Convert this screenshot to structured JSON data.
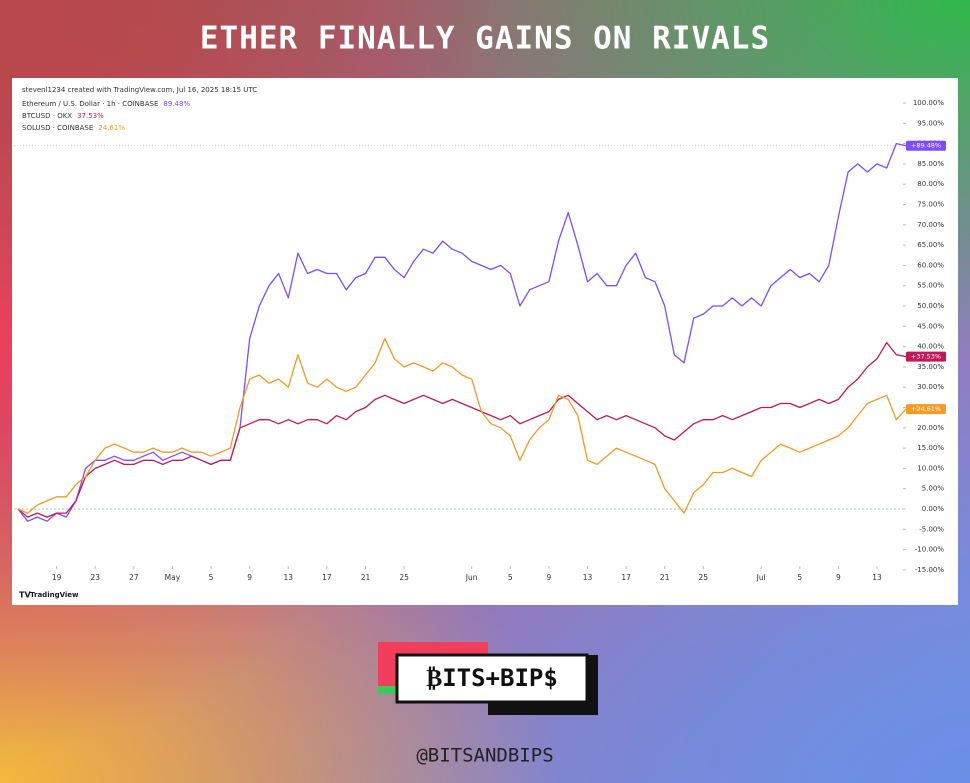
{
  "chart_data": {
    "type": "line",
    "title": "ETHER FINALLY GAINS ON RIVALS",
    "attribution": "stevenl1234 created with TradingView.com, Jul 16, 2025 18:15 UTC",
    "brand": "TradingView",
    "logo": "₿ITS+BIP$",
    "handle": "@BITSANDBIPS",
    "categories": [
      null,
      null,
      null,
      null,
      "19",
      null,
      null,
      null,
      "23",
      null,
      null,
      null,
      "27",
      null,
      null,
      null,
      "May",
      null,
      null,
      null,
      "5",
      null,
      null,
      null,
      "9",
      null,
      null,
      null,
      "13",
      null,
      null,
      null,
      "17",
      null,
      null,
      null,
      "21",
      null,
      null,
      null,
      "25",
      null,
      null,
      null,
      null,
      null,
      null,
      "Jun",
      null,
      null,
      null,
      "5",
      null,
      null,
      null,
      "9",
      null,
      null,
      null,
      "13",
      null,
      null,
      null,
      "17",
      null,
      null,
      null,
      "21",
      null,
      null,
      null,
      "25",
      null,
      null,
      null,
      null,
      null,
      "Jul",
      null,
      null,
      null,
      "5",
      null,
      null,
      null,
      "9",
      null,
      null,
      null,
      "13",
      null,
      null,
      null
    ],
    "series": [
      {
        "name": "Ethereum / U.S. Dollar · 1h · COINBASE",
        "legend_value": "89.48%",
        "last_label": "+89.48%",
        "color": "#7c4dff",
        "values": [
          0,
          -3,
          -2,
          -3,
          -1,
          -2,
          2,
          10,
          12,
          12,
          13,
          12,
          12,
          13,
          14,
          12,
          13,
          14,
          13,
          12,
          11,
          12,
          12,
          20,
          42,
          50,
          55,
          58,
          52,
          63,
          58,
          59,
          58,
          58,
          54,
          57,
          58,
          62,
          62,
          59,
          57,
          61,
          64,
          63,
          66,
          64,
          63,
          61,
          60,
          59,
          60,
          58,
          50,
          54,
          55,
          56,
          66,
          73,
          65,
          56,
          58,
          55,
          55,
          60,
          63,
          57,
          56,
          50,
          38,
          36,
          47,
          48,
          50,
          50,
          52,
          50,
          52,
          50,
          55,
          57,
          59,
          57,
          58,
          56,
          60,
          72,
          83,
          85,
          83,
          85,
          84,
          90,
          89.48
        ]
      },
      {
        "name": "BTCUSD · OKX",
        "legend_value": "37.53%",
        "last_label": "+37.53%",
        "color": "#c2185b",
        "values": [
          0,
          -2,
          -1,
          -2,
          -1,
          -1,
          2,
          8,
          10,
          11,
          12,
          11,
          11,
          12,
          12,
          11,
          12,
          12,
          13,
          12,
          11,
          12,
          12,
          20,
          21,
          22,
          22,
          21,
          22,
          21,
          22,
          22,
          21,
          23,
          22,
          24,
          25,
          27,
          28,
          27,
          26,
          27,
          28,
          27,
          26,
          27,
          26,
          25,
          24,
          23,
          22,
          23,
          21,
          22,
          23,
          24,
          27,
          28,
          26,
          24,
          22,
          23,
          22,
          23,
          22,
          21,
          20,
          18,
          17,
          19,
          21,
          22,
          22,
          23,
          22,
          23,
          24,
          25,
          25,
          26,
          26,
          25,
          26,
          27,
          26,
          27,
          30,
          32,
          35,
          37,
          41,
          38,
          37.53
        ]
      },
      {
        "name": "SOLUSD · COINBASE",
        "legend_value": "24.61%",
        "last_label": "+24.61%",
        "color": "#f39b22",
        "values": [
          0,
          -1,
          1,
          2,
          3,
          3,
          6,
          8,
          12,
          15,
          16,
          15,
          14,
          14,
          15,
          14,
          14,
          15,
          14,
          14,
          13,
          14,
          15,
          25,
          32,
          33,
          31,
          32,
          30,
          38,
          31,
          30,
          32,
          30,
          29,
          30,
          33,
          36,
          42,
          37,
          35,
          36,
          35,
          34,
          36,
          35,
          33,
          32,
          24,
          21,
          20,
          18,
          12,
          17,
          20,
          22,
          28,
          27,
          23,
          12,
          11,
          13,
          15,
          14,
          13,
          12,
          11,
          5,
          2,
          -1,
          4,
          6,
          9,
          9,
          10,
          9,
          8,
          12,
          14,
          16,
          15,
          14,
          15,
          16,
          17,
          18,
          20,
          23,
          26,
          27,
          28,
          22,
          24.61
        ]
      }
    ],
    "ylim": [
      -13,
      102
    ],
    "yticks": [
      {
        "value": 100,
        "label": "100.00%"
      },
      {
        "value": 95,
        "label": "95.00%"
      },
      {
        "value": 90,
        "label": "90.00%"
      },
      {
        "value": 85,
        "label": "85.00%"
      },
      {
        "value": 80,
        "label": "80.00%"
      },
      {
        "value": 75,
        "label": "75.00%"
      },
      {
        "value": 70,
        "label": "70.00%"
      },
      {
        "value": 65,
        "label": "65.00%"
      },
      {
        "value": 60,
        "label": "60.00%"
      },
      {
        "value": 55,
        "label": "55.00%"
      },
      {
        "value": 50,
        "label": "50.00%"
      },
      {
        "value": 45,
        "label": "45.00%"
      },
      {
        "value": 40,
        "label": "40.00%"
      },
      {
        "value": 35,
        "label": "35.00%"
      },
      {
        "value": 30,
        "label": "30.00%"
      },
      {
        "value": 25,
        "label": "25.00%"
      },
      {
        "value": 20,
        "label": "20.00%"
      },
      {
        "value": 15,
        "label": "15.00%"
      },
      {
        "value": 10,
        "label": "10.00%"
      },
      {
        "value": 5,
        "label": "5.00%"
      },
      {
        "value": 0,
        "label": "0.00%"
      },
      {
        "value": -5,
        "label": "-5.00%"
      },
      {
        "value": -10,
        "label": "-10.00%"
      },
      {
        "value": -15,
        "label": "-15.00%"
      }
    ],
    "grid": false
  }
}
